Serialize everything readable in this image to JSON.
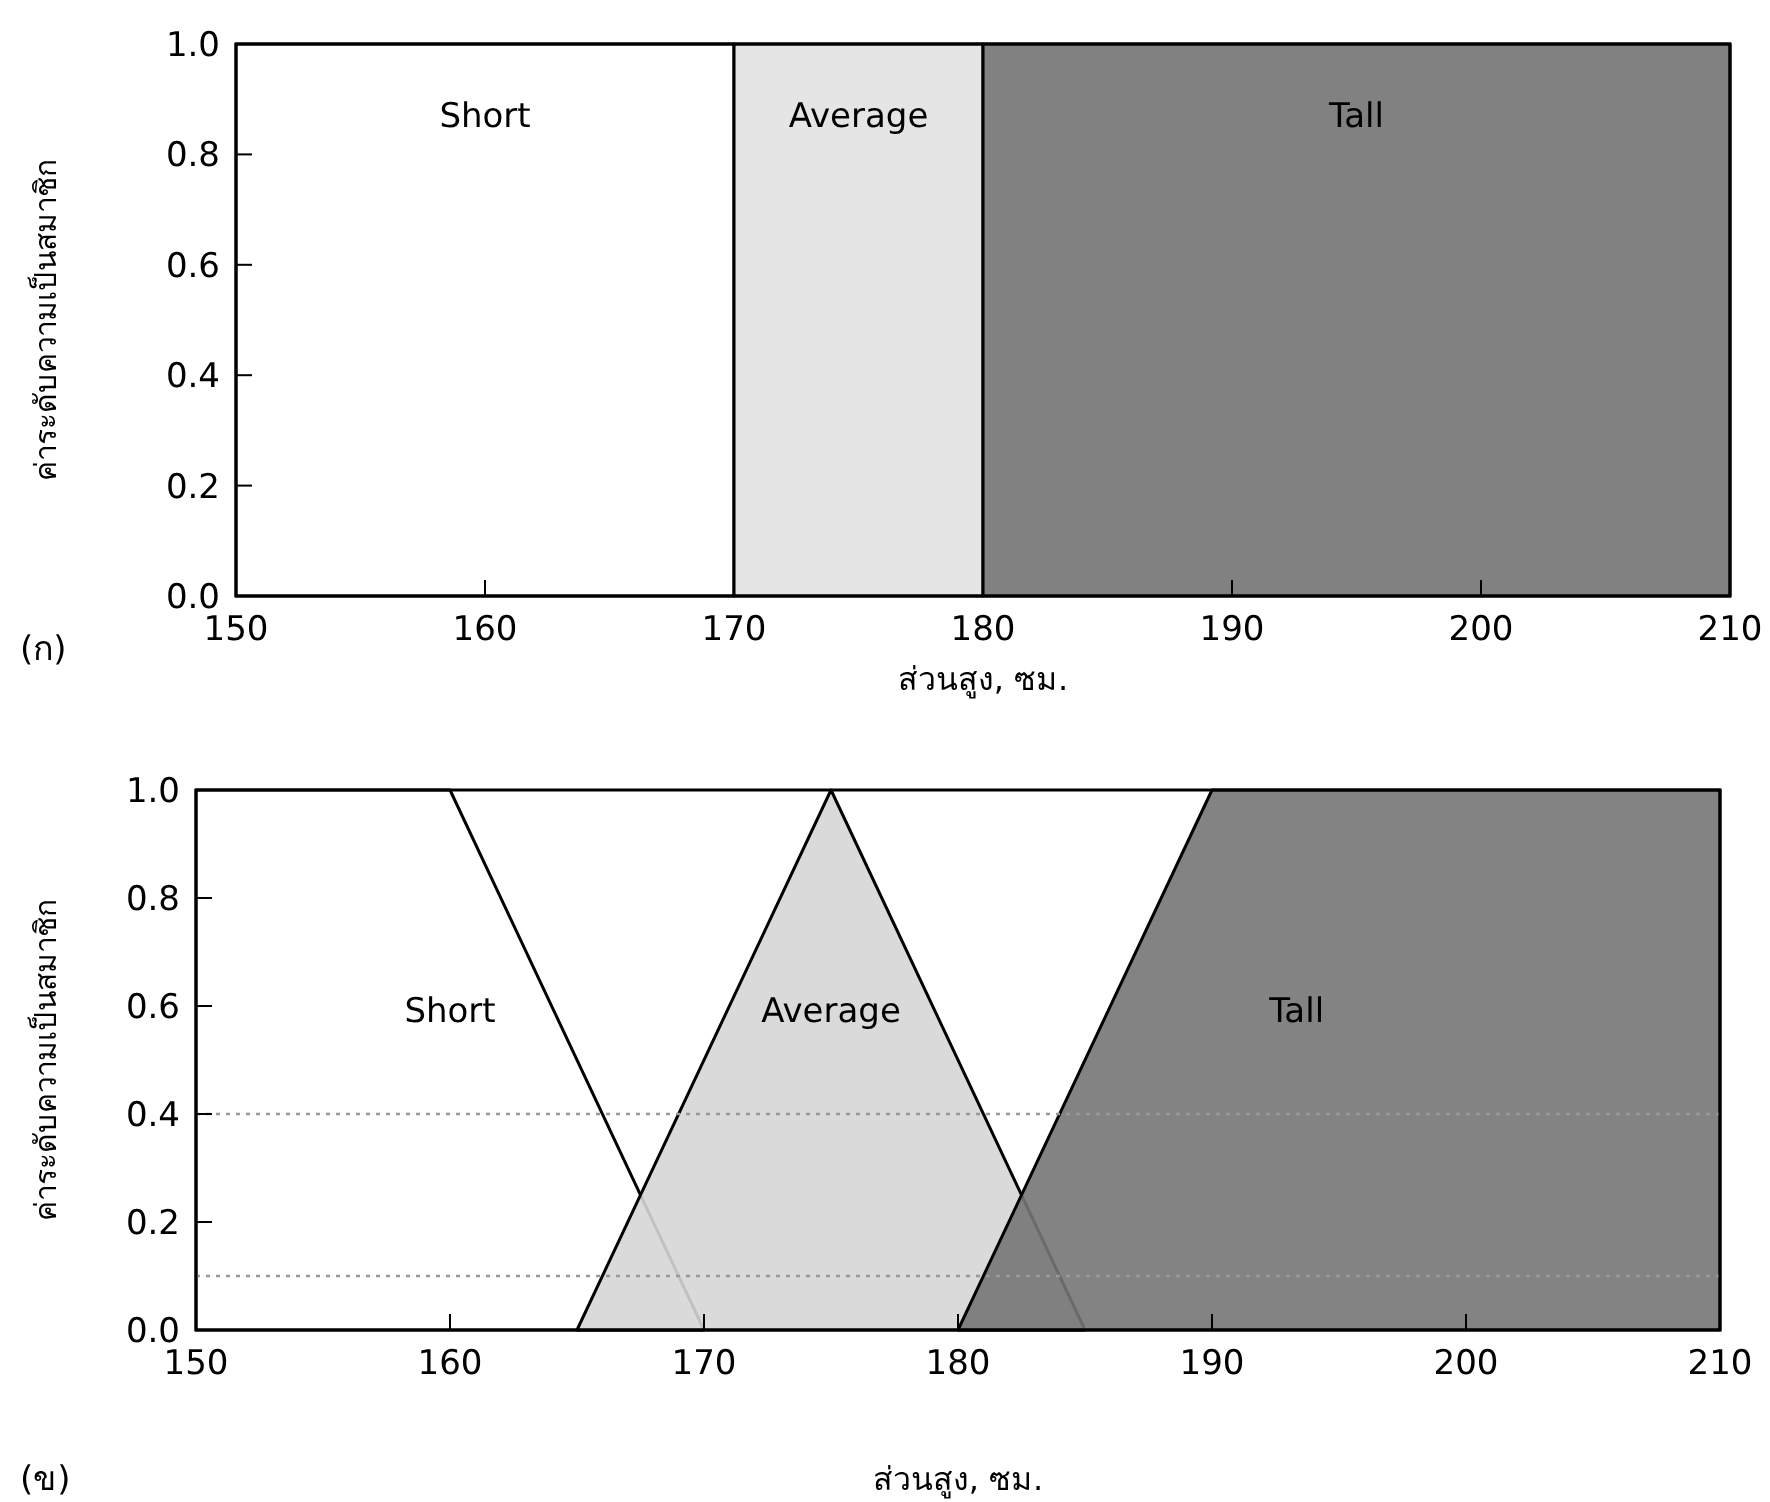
{
  "chart_data": [
    {
      "type": "area",
      "title": "(ก)",
      "xlabel": "ส่วนสูง, ซม.",
      "ylabel": "ค่าระดับความเป็นสมาชิก",
      "xlim": [
        150,
        210
      ],
      "ylim": [
        0,
        1
      ],
      "xticks": [
        150,
        160,
        170,
        180,
        190,
        200,
        210
      ],
      "yticks": [
        {
          "value": 0,
          "label": "0.0"
        },
        {
          "value": 0.2,
          "label": "0.2"
        },
        {
          "value": 0.4,
          "label": "0.4"
        },
        {
          "value": 0.6,
          "label": "0.6"
        },
        {
          "value": 0.8,
          "label": "0.8"
        },
        {
          "value": 1,
          "label": "1.0"
        }
      ],
      "series": [
        {
          "name": "Short",
          "color": "#ffffff",
          "x": [
            150,
            170
          ],
          "values": [
            1,
            1
          ]
        },
        {
          "name": "Average",
          "color": "#e2e2e2",
          "x": [
            170,
            180
          ],
          "values": [
            1,
            1
          ]
        },
        {
          "name": "Tall",
          "color": "#737373",
          "x": [
            180,
            210
          ],
          "values": [
            1,
            1
          ]
        }
      ]
    },
    {
      "type": "area",
      "title": "(ข)",
      "xlabel": "ส่วนสูง, ซม.",
      "ylabel": "ค่าระดับความเป็นสมาชิก",
      "xlim": [
        150,
        210
      ],
      "ylim": [
        0,
        1
      ],
      "xticks": [
        150,
        160,
        170,
        180,
        190,
        200,
        210
      ],
      "yticks": [
        {
          "value": 0,
          "label": "0.0"
        },
        {
          "value": 0.2,
          "label": "0.2"
        },
        {
          "value": 0.4,
          "label": "0.4"
        },
        {
          "value": 0.6,
          "label": "0.6"
        },
        {
          "value": 0.8,
          "label": "0.8"
        },
        {
          "value": 1,
          "label": "1.0"
        }
      ],
      "series": [
        {
          "name": "Short",
          "color": "#ffffff",
          "x": [
            150,
            160,
            170
          ],
          "values": [
            1,
            1,
            0
          ]
        },
        {
          "name": "Average",
          "color": "#d6d6d6",
          "x": [
            165,
            175,
            185
          ],
          "values": [
            0,
            1,
            0
          ]
        },
        {
          "name": "Tall",
          "color": "#767676",
          "x": [
            180,
            190,
            210
          ],
          "values": [
            0,
            1,
            1
          ]
        }
      ],
      "ref_lines": [
        {
          "axis": "y",
          "value": 0.4,
          "color": "#999999",
          "line_style": "dotted"
        },
        {
          "axis": "y",
          "value": 0.1,
          "color": "#999999",
          "line_style": "dotted"
        }
      ]
    }
  ]
}
